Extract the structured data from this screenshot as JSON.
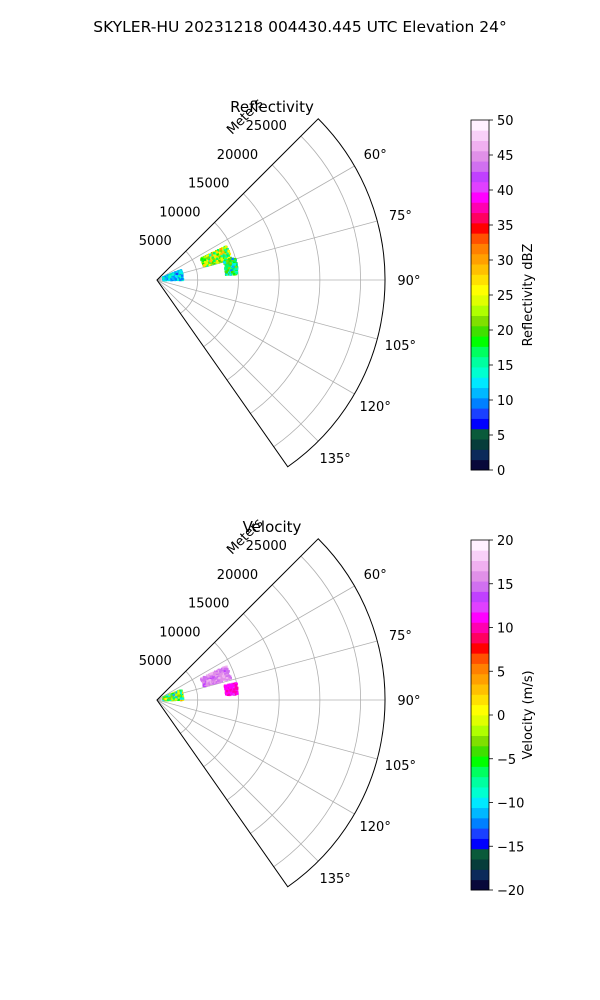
{
  "figure": {
    "suptitle": "SKYLER-HU  20231218  004430.445 UTC Elevation 24°"
  },
  "chart_data": [
    {
      "type": "heatmap",
      "subtype": "polar-sector",
      "title": "Reflectivity",
      "radial_label": "Meters",
      "radial_ticks": [
        "5000",
        "10000",
        "15000",
        "20000",
        "25000"
      ],
      "radial_tick_values": [
        5000,
        10000,
        15000,
        20000,
        25000
      ],
      "r_max": 28000,
      "theta_range_deg": [
        45,
        145
      ],
      "theta_ticks": [
        "60°",
        "75°",
        "90°",
        "105°",
        "120°",
        "135°"
      ],
      "theta_tick_values": [
        60,
        75,
        90,
        105,
        120,
        135
      ],
      "grid": true,
      "colorbar": {
        "label": "Reflectivity dBZ",
        "range": [
          0,
          50
        ],
        "ticks": [
          "0",
          "5",
          "10",
          "15",
          "20",
          "25",
          "30",
          "35",
          "40",
          "45",
          "50"
        ],
        "tick_values": [
          0,
          5,
          10,
          15,
          20,
          25,
          30,
          35,
          40,
          45,
          50
        ],
        "palette": [
          "#08083a",
          "#0c2a5a",
          "#063c3a",
          "#0a5a3a",
          "#0000ff",
          "#1a40ff",
          "#0080ff",
          "#00b8ff",
          "#00e8ff",
          "#00ffd0",
          "#00ffa0",
          "#00ff60",
          "#00ff00",
          "#40e000",
          "#80e000",
          "#b0ff00",
          "#e0ff00",
          "#ffff00",
          "#ffe000",
          "#ffc000",
          "#ffa000",
          "#ff8000",
          "#ff5000",
          "#ff0000",
          "#ff0060",
          "#ff00b0",
          "#ff00ff",
          "#e040ff",
          "#c040ff",
          "#d070f0",
          "#e090e8",
          "#f0b0f0",
          "#f8d0f8",
          "#fff0ff"
        ]
      },
      "echo_regions": [
        {
          "theta_range": [
            64,
            74
          ],
          "r_range": [
            6000,
            9500
          ],
          "value_range": [
            14,
            30
          ]
        },
        {
          "theta_range": [
            74,
            86
          ],
          "r_range": [
            8500,
            10000
          ],
          "value_range": [
            10,
            22
          ]
        },
        {
          "theta_range": [
            68,
            90
          ],
          "r_range": [
            800,
            3200
          ],
          "value_range": [
            8,
            16
          ]
        }
      ]
    },
    {
      "type": "heatmap",
      "subtype": "polar-sector",
      "title": "Velocity",
      "radial_label": "Meters",
      "radial_ticks": [
        "5000",
        "10000",
        "15000",
        "20000",
        "25000"
      ],
      "radial_tick_values": [
        5000,
        10000,
        15000,
        20000,
        25000
      ],
      "r_max": 28000,
      "theta_range_deg": [
        45,
        145
      ],
      "theta_ticks": [
        "60°",
        "75°",
        "90°",
        "105°",
        "120°",
        "135°"
      ],
      "theta_tick_values": [
        60,
        75,
        90,
        105,
        120,
        135
      ],
      "grid": true,
      "colorbar": {
        "label": "Velocity (m/s)",
        "range": [
          -20,
          20
        ],
        "ticks": [
          "−20",
          "−15",
          "−10",
          "−5",
          "0",
          "5",
          "10",
          "15",
          "20"
        ],
        "tick_values": [
          -20,
          -15,
          -10,
          -5,
          0,
          5,
          10,
          15,
          20
        ],
        "palette": [
          "#08083a",
          "#0c2a5a",
          "#063c3a",
          "#0a5a3a",
          "#0000ff",
          "#1a40ff",
          "#0080ff",
          "#00b8ff",
          "#00e8ff",
          "#00ffd0",
          "#00ffa0",
          "#00ff60",
          "#00ff00",
          "#40e000",
          "#80e000",
          "#b0ff00",
          "#e0ff00",
          "#ffff00",
          "#ffe000",
          "#ffc000",
          "#ffa000",
          "#ff8000",
          "#ff5000",
          "#ff0000",
          "#ff0060",
          "#ff00b0",
          "#ff00ff",
          "#e040ff",
          "#c040ff",
          "#d070f0",
          "#e090e8",
          "#f0b0f0",
          "#f8d0f8",
          "#fff0ff"
        ]
      },
      "echo_regions": [
        {
          "theta_range": [
            64,
            74
          ],
          "r_range": [
            6000,
            9500
          ],
          "value_range": [
            14,
            17
          ]
        },
        {
          "theta_range": [
            78,
            86
          ],
          "r_range": [
            8500,
            10000
          ],
          "value_range": [
            10,
            12
          ]
        },
        {
          "theta_range": [
            68,
            90
          ],
          "r_range": [
            800,
            3200
          ],
          "value_range": [
            -12,
            4
          ]
        }
      ]
    }
  ]
}
